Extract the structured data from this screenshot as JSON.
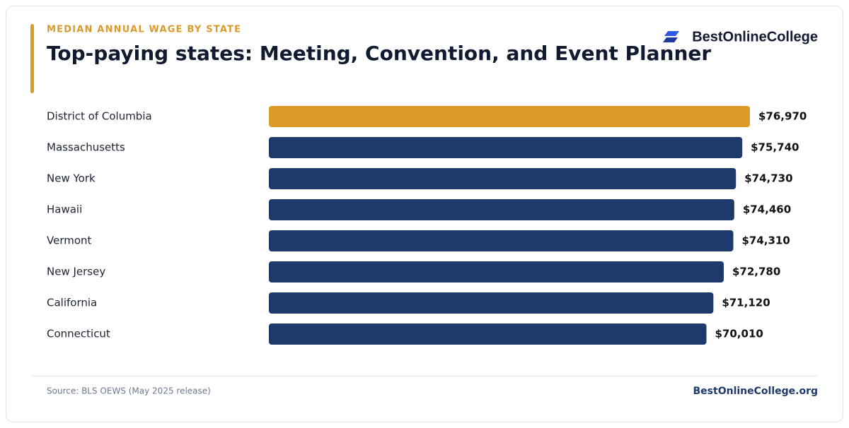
{
  "chart_data": {
    "type": "bar",
    "orientation": "horizontal",
    "kicker": "MEDIAN ANNUAL WAGE BY STATE",
    "title": "Top-paying states: Meeting, Convention, and Event Planner",
    "brand": "BestOnlineCollege",
    "categories": [
      "District of Columbia",
      "Massachusetts",
      "New York",
      "Hawaii",
      "Vermont",
      "New Jersey",
      "California",
      "Connecticut"
    ],
    "values": [
      76970,
      75740,
      74730,
      74460,
      74310,
      72780,
      71120,
      70010
    ],
    "value_labels": [
      "$76,970",
      "$75,740",
      "$74,730",
      "$74,460",
      "$74,310",
      "$72,780",
      "$71,120",
      "$70,010"
    ],
    "colors": [
      "#da9a2a",
      "#1e3a6c",
      "#1e3a6c",
      "#1e3a6c",
      "#1e3a6c",
      "#1e3a6c",
      "#1e3a6c",
      "#1e3a6c"
    ],
    "source": "Source: BLS OEWS (May 2025 release)",
    "footer": "BestOnlineCollege.org"
  }
}
